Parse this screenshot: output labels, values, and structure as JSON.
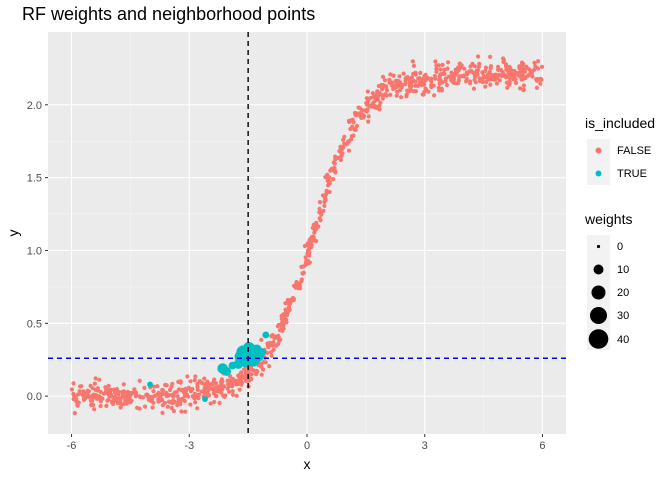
{
  "chart_data": {
    "type": "scatter",
    "title": "RF weights and neighborhood points",
    "xlabel": "x",
    "ylabel": "y",
    "xlim": [
      -6.6,
      6.6
    ],
    "ylim": [
      -0.26,
      2.5
    ],
    "x_ticks": [
      -6,
      -3,
      0,
      3,
      6
    ],
    "x_tick_labels": [
      "-6",
      "-3",
      "0",
      "3",
      "6"
    ],
    "y_ticks": [
      0.0,
      0.5,
      1.0,
      1.5,
      2.0
    ],
    "y_tick_labels": [
      "0.0",
      "0.5",
      "1.0",
      "1.5",
      "2.0"
    ],
    "grid": true,
    "background": "#ebebeb",
    "reference_lines": {
      "vertical_x": -1.5,
      "vertical_color": "#000000",
      "horizontal_y": 0.26,
      "horizontal_color": "#0000ff"
    },
    "color_legend": {
      "title": "is_included",
      "entries": [
        {
          "label": "FALSE",
          "color": "#f8766d"
        },
        {
          "label": "TRUE",
          "color": "#00bfc4"
        }
      ]
    },
    "size_legend": {
      "title": "weights",
      "entries": [
        {
          "label": "0",
          "value": 0
        },
        {
          "label": "10",
          "value": 10
        },
        {
          "label": "20",
          "value": 20
        },
        {
          "label": "30",
          "value": 30
        },
        {
          "label": "40",
          "value": 40
        }
      ]
    },
    "curve": {
      "description": "logistic",
      "upper": 2.2,
      "midpoint": 0.15,
      "scale": 0.62,
      "noise_sd": 0.045,
      "n_points": 1000,
      "x_range": [
        -6,
        6
      ]
    },
    "series": [
      {
        "name": "TRUE",
        "color": "#00bfc4",
        "points": [
          {
            "x": -4.0,
            "y": 0.08,
            "weight": 1
          },
          {
            "x": -2.6,
            "y": -0.02,
            "weight": 1
          },
          {
            "x": -2.15,
            "y": 0.19,
            "weight": 8
          },
          {
            "x": -2.05,
            "y": 0.17,
            "weight": 5
          },
          {
            "x": -1.9,
            "y": 0.21,
            "weight": 3
          },
          {
            "x": -1.75,
            "y": 0.22,
            "weight": 6
          },
          {
            "x": -1.68,
            "y": 0.27,
            "weight": 14
          },
          {
            "x": -1.62,
            "y": 0.3,
            "weight": 18
          },
          {
            "x": -1.58,
            "y": 0.24,
            "weight": 10
          },
          {
            "x": -1.55,
            "y": 0.28,
            "weight": 22
          },
          {
            "x": -1.5,
            "y": 0.25,
            "weight": 16
          },
          {
            "x": -1.48,
            "y": 0.33,
            "weight": 12
          },
          {
            "x": -1.44,
            "y": 0.27,
            "weight": 20
          },
          {
            "x": -1.4,
            "y": 0.31,
            "weight": 14
          },
          {
            "x": -1.36,
            "y": 0.24,
            "weight": 9
          },
          {
            "x": -1.32,
            "y": 0.29,
            "weight": 11
          },
          {
            "x": -1.28,
            "y": 0.32,
            "weight": 7
          },
          {
            "x": -1.22,
            "y": 0.27,
            "weight": 5
          },
          {
            "x": -1.15,
            "y": 0.3,
            "weight": 4
          },
          {
            "x": -1.05,
            "y": 0.42,
            "weight": 2
          }
        ]
      }
    ]
  }
}
